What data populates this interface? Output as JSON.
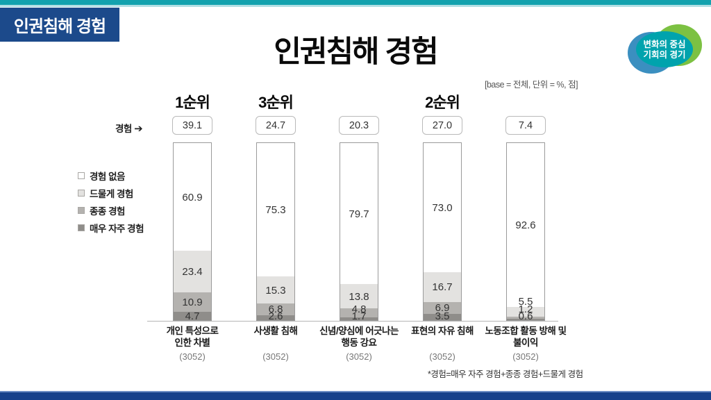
{
  "page": {
    "badge": "인권침해 경험",
    "title": "인권침해 경험",
    "base_note": "[base = 전체, 단위 = %, 점]",
    "footnote": "*경험=매우 자주 경험+종종 경험+드물게 경험",
    "logo": {
      "line1": "변화의 중심",
      "line2": "기회의 경기"
    }
  },
  "colors": {
    "top_bar": "#13a2ae",
    "bottom_bar": "#17418b",
    "badge_bg": "#1c4a8b",
    "logo_blue": "#3b8fc0",
    "logo_green": "#7cc142",
    "logo_teal": "#00a3ad"
  },
  "chart_data": {
    "type": "bar",
    "stacked": true,
    "unit": "%",
    "ylim": [
      0,
      100
    ],
    "legend_position": "left",
    "score_caption": "경험",
    "categories": [
      {
        "label": "개인 특성으로\n인한 차별",
        "base": "(3052)",
        "rank": "1순위",
        "score": "39.1"
      },
      {
        "label": "사생활 침해",
        "base": "(3052)",
        "rank": "3순위",
        "score": "24.7"
      },
      {
        "label": "신념/양심에 어긋나는\n행동 강요",
        "base": "(3052)",
        "rank": null,
        "score": "20.3"
      },
      {
        "label": "표현의 자유 침해",
        "base": "(3052)",
        "rank": "2순위",
        "score": "27.0"
      },
      {
        "label": "노동조합 활동 방해 및\n불이익",
        "base": "(3052)",
        "rank": null,
        "score": "7.4"
      }
    ],
    "series": [
      {
        "name": "경험 없음",
        "color": "#ffffff",
        "values": [
          60.9,
          75.3,
          79.7,
          73.0,
          92.6
        ]
      },
      {
        "name": "드물게 경험",
        "color": "#e3e2e0",
        "values": [
          23.4,
          15.3,
          13.8,
          16.7,
          5.5
        ]
      },
      {
        "name": "종종 경험",
        "color": "#b4b2af",
        "values": [
          10.9,
          6.8,
          4.8,
          6.9,
          1.2
        ]
      },
      {
        "name": "매우 자주 경험",
        "color": "#8f8d8a",
        "values": [
          4.7,
          2.6,
          1.7,
          3.5,
          0.6
        ]
      }
    ]
  }
}
